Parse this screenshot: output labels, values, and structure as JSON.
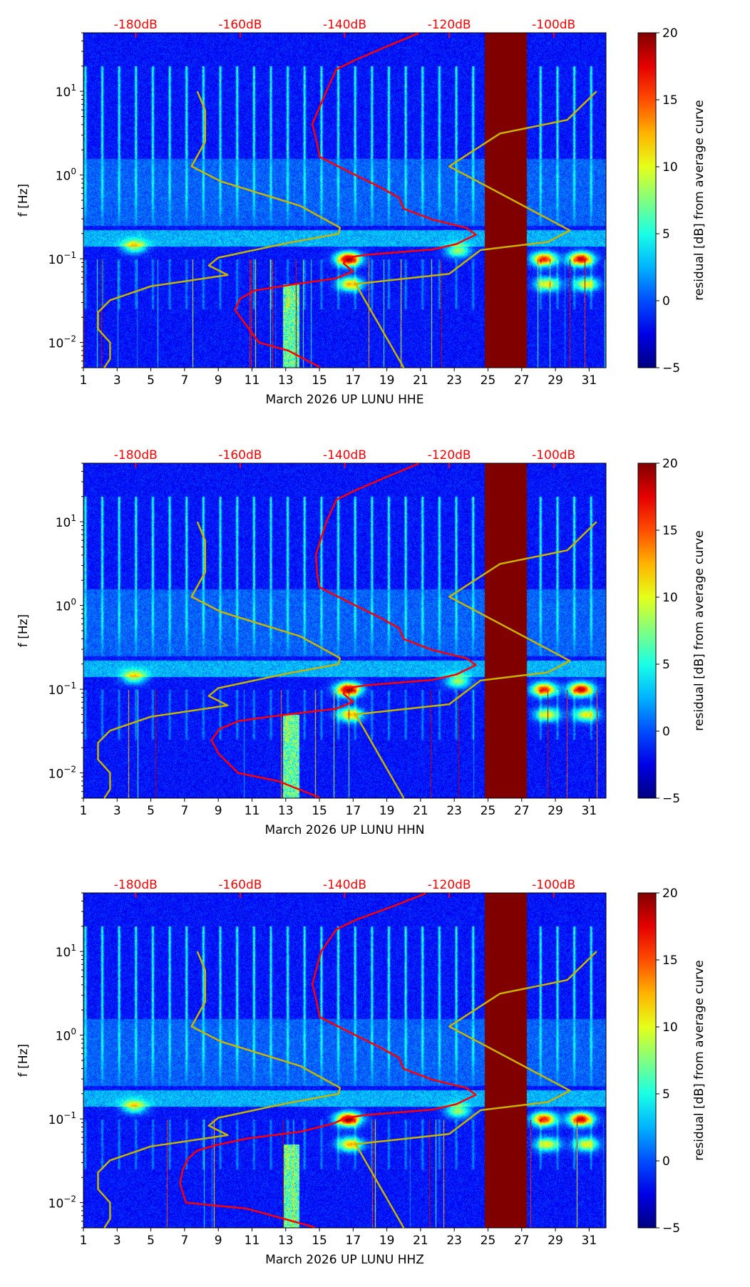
{
  "chart_data": [
    {
      "type": "heatmap",
      "xlabel": "March 2026 UP LUNU  HHE",
      "ylabel": "f [Hz]",
      "colorbar_label": "residual [dB] from average curve",
      "xlim": [
        1,
        32
      ],
      "ylim": [
        0.005,
        50
      ],
      "yscale": "log",
      "top_axis": {
        "range_db": [
          -190,
          -90
        ],
        "ticks": [
          -180,
          -160,
          -140,
          -120,
          -100
        ],
        "labels": [
          "-180dB",
          "-160dB",
          "-140dB",
          "-120dB",
          "-100dB"
        ]
      },
      "clim": [
        -5,
        20
      ],
      "no_data_days": [
        24.8,
        27.3
      ],
      "psd_curve": [
        [
          -125.9,
          49.3
        ],
        [
          -132.4,
          33.4
        ],
        [
          -137.9,
          23.8
        ],
        [
          -141.6,
          18.3
        ],
        [
          -143.5,
          10
        ],
        [
          -146.2,
          4.07
        ],
        [
          -145.3,
          2.41
        ],
        [
          -144.8,
          1.65
        ],
        [
          -139.8,
          1.14
        ],
        [
          -133.3,
          0.72
        ],
        [
          -129.6,
          0.536
        ],
        [
          -128.7,
          0.397
        ],
        [
          -123.2,
          0.294
        ],
        [
          -116.7,
          0.234
        ],
        [
          -114.9,
          0.194
        ],
        [
          -118.6,
          0.15
        ],
        [
          -123.2,
          0.129
        ],
        [
          -136.1,
          0.111
        ],
        [
          -139.8,
          0.103
        ],
        [
          -140.2,
          0.088
        ],
        [
          -138.4,
          0.0705
        ],
        [
          -141.6,
          0.0585
        ],
        [
          -150.8,
          0.0484
        ],
        [
          -157.3,
          0.0417
        ],
        [
          -160.0,
          0.0333
        ],
        [
          -161.0,
          0.0246
        ],
        [
          -159.1,
          0.0169
        ],
        [
          -156.4,
          0.01
        ],
        [
          -150.8,
          0.008
        ],
        [
          -144.8,
          0.0051
        ]
      ]
    },
    {
      "type": "heatmap",
      "xlabel": "March 2026 UP LUNU  HHN",
      "ylabel": "f [Hz]",
      "colorbar_label": "residual [dB] from average curve",
      "xlim": [
        1,
        32
      ],
      "ylim": [
        0.005,
        50
      ],
      "yscale": "log",
      "top_axis": {
        "range_db": [
          -190,
          -90
        ],
        "ticks": [
          -180,
          -160,
          -140,
          -120,
          -100
        ],
        "labels": [
          "-180dB",
          "-160dB",
          "-140dB",
          "-120dB",
          "-100dB"
        ]
      },
      "clim": [
        -5,
        20
      ],
      "no_data_days": [
        24.8,
        27.3
      ],
      "psd_curve": [
        [
          -125.9,
          49.3
        ],
        [
          -132.4,
          33.4
        ],
        [
          -137.9,
          23.8
        ],
        [
          -141.6,
          18.3
        ],
        [
          -143.5,
          10
        ],
        [
          -145.5,
          4.07
        ],
        [
          -145.3,
          2.41
        ],
        [
          -144.8,
          1.65
        ],
        [
          -139.8,
          1.14
        ],
        [
          -133.3,
          0.72
        ],
        [
          -129.6,
          0.536
        ],
        [
          -128.7,
          0.397
        ],
        [
          -123.2,
          0.294
        ],
        [
          -116.7,
          0.234
        ],
        [
          -114.9,
          0.194
        ],
        [
          -118.6,
          0.15
        ],
        [
          -123.2,
          0.129
        ],
        [
          -136.1,
          0.111
        ],
        [
          -139.8,
          0.103
        ],
        [
          -140.2,
          0.088
        ],
        [
          -138.4,
          0.0705
        ],
        [
          -141.6,
          0.0585
        ],
        [
          -152.8,
          0.0484
        ],
        [
          -160.3,
          0.0417
        ],
        [
          -164.0,
          0.0333
        ],
        [
          -165.5,
          0.0246
        ],
        [
          -164.1,
          0.0169
        ],
        [
          -160.4,
          0.01
        ],
        [
          -152.8,
          0.008
        ],
        [
          -144.8,
          0.0051
        ]
      ]
    },
    {
      "type": "heatmap",
      "xlabel": "March 2026 UP LUNU  HHZ",
      "ylabel": "f [Hz]",
      "colorbar_label": "residual [dB] from average curve",
      "xlim": [
        1,
        32
      ],
      "ylim": [
        0.005,
        50
      ],
      "yscale": "log",
      "top_axis": {
        "range_db": [
          -190,
          -90
        ],
        "ticks": [
          -180,
          -160,
          -140,
          -120,
          -100
        ],
        "labels": [
          "-180dB",
          "-160dB",
          "-140dB",
          "-120dB",
          "-100dB"
        ]
      },
      "clim": [
        -5,
        20
      ],
      "no_data_days": [
        24.8,
        27.3
      ],
      "psd_curve": [
        [
          -124.5,
          49.3
        ],
        [
          -131.4,
          33.4
        ],
        [
          -137.9,
          23.8
        ],
        [
          -141.6,
          18.3
        ],
        [
          -144.5,
          10
        ],
        [
          -146.2,
          4.07
        ],
        [
          -145.3,
          2.41
        ],
        [
          -144.8,
          1.65
        ],
        [
          -139.8,
          1.14
        ],
        [
          -133.3,
          0.72
        ],
        [
          -129.6,
          0.536
        ],
        [
          -128.7,
          0.397
        ],
        [
          -123.2,
          0.294
        ],
        [
          -116.7,
          0.234
        ],
        [
          -114.9,
          0.194
        ],
        [
          -118.6,
          0.15
        ],
        [
          -123.2,
          0.129
        ],
        [
          -136.1,
          0.111
        ],
        [
          -139.8,
          0.103
        ],
        [
          -142.2,
          0.088
        ],
        [
          -148.4,
          0.0705
        ],
        [
          -158.6,
          0.0585
        ],
        [
          -164.8,
          0.0484
        ],
        [
          -168.3,
          0.0417
        ],
        [
          -170.0,
          0.0333
        ],
        [
          -171.0,
          0.0246
        ],
        [
          -171.5,
          0.0169
        ],
        [
          -170.4,
          0.01
        ],
        [
          -158.8,
          0.0085
        ],
        [
          -145.8,
          0.0051
        ]
      ]
    }
  ],
  "noise_models": {
    "low": [
      [
        -168.2,
        10
      ],
      [
        -166.7,
        5.94
      ],
      [
        -166.7,
        2.5
      ],
      [
        -169.3,
        1.27
      ],
      [
        -163.7,
        0.841
      ],
      [
        -148.5,
        0.428
      ],
      [
        -140.9,
        0.235
      ],
      [
        -141.2,
        0.199
      ],
      [
        -150.8,
        0.155
      ],
      [
        -164.2,
        0.103
      ],
      [
        -166.0,
        0.083
      ],
      [
        -162.4,
        0.064
      ],
      [
        -177.1,
        0.047
      ],
      [
        -184.9,
        0.032
      ],
      [
        -187.2,
        0.0229
      ],
      [
        -187.2,
        0.0145
      ],
      [
        -184.9,
        0.01
      ],
      [
        -184.9,
        0.0064
      ],
      [
        -186.0,
        0.005
      ]
    ],
    "high": [
      [
        -91.8,
        10
      ],
      [
        -97.4,
        4.56
      ],
      [
        -110.3,
        3.13
      ],
      [
        -120.0,
        1.27
      ],
      [
        -96.9,
        0.218
      ],
      [
        -101.1,
        0.159
      ],
      [
        -114.0,
        0.127
      ],
      [
        -120.0,
        0.066
      ],
      [
        -137.9,
        0.05
      ],
      [
        -128.7,
        0.005
      ]
    ]
  },
  "x_ticks": [
    "1",
    "3",
    "5",
    "7",
    "9",
    "11",
    "13",
    "15",
    "17",
    "19",
    "21",
    "23",
    "25",
    "27",
    "29",
    "31"
  ],
  "y_ticks": [
    {
      "base": "10",
      "exp": "−2",
      "value": 0.01
    },
    {
      "base": "10",
      "exp": "−1",
      "value": 0.1
    },
    {
      "base": "10",
      "exp": "0",
      "value": 1
    },
    {
      "base": "10",
      "exp": "1",
      "value": 10
    }
  ],
  "colorbar_ticks": [
    "−5",
    "0",
    "5",
    "10",
    "15",
    "20"
  ],
  "colors": {
    "psd": "#ff0000",
    "noise_model": "#c8b400",
    "top_axis": "#ff0000"
  }
}
